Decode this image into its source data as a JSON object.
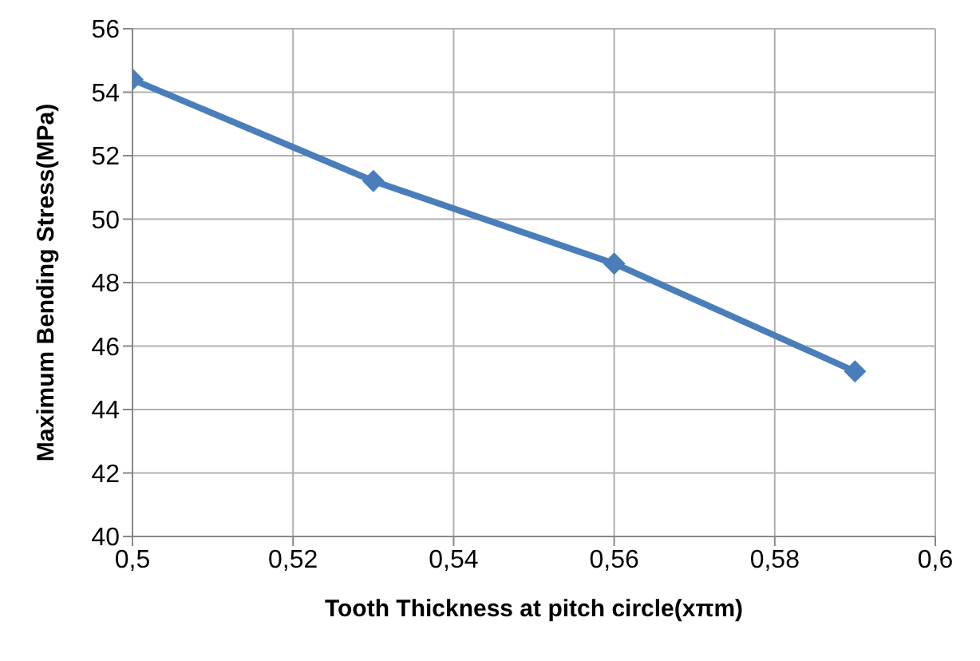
{
  "chart_data": {
    "type": "line",
    "xlabel": "Tooth Thickness at pitch circle(xπm)",
    "ylabel": "Maximum Bending Stress(MPa)",
    "x": [
      0.5,
      0.53,
      0.56,
      0.59
    ],
    "series": [
      {
        "color": "#4a7ebb",
        "values": [
          54.4,
          51.2,
          48.6,
          45.2
        ]
      }
    ],
    "xlim": [
      0.5,
      0.6
    ],
    "xticks": [
      {
        "value": 0.5,
        "label": "0,5"
      },
      {
        "value": 0.52,
        "label": "0,52"
      },
      {
        "value": 0.54,
        "label": "0,54"
      },
      {
        "value": 0.56,
        "label": "0,56"
      },
      {
        "value": 0.58,
        "label": "0,58"
      },
      {
        "value": 0.6,
        "label": "0,6"
      }
    ],
    "ylim": [
      40,
      56
    ],
    "yticks": [
      40,
      42,
      44,
      46,
      48,
      50,
      52,
      54,
      56
    ],
    "grid": true,
    "marker": "diamond",
    "line_style": "solid",
    "legend": false
  }
}
